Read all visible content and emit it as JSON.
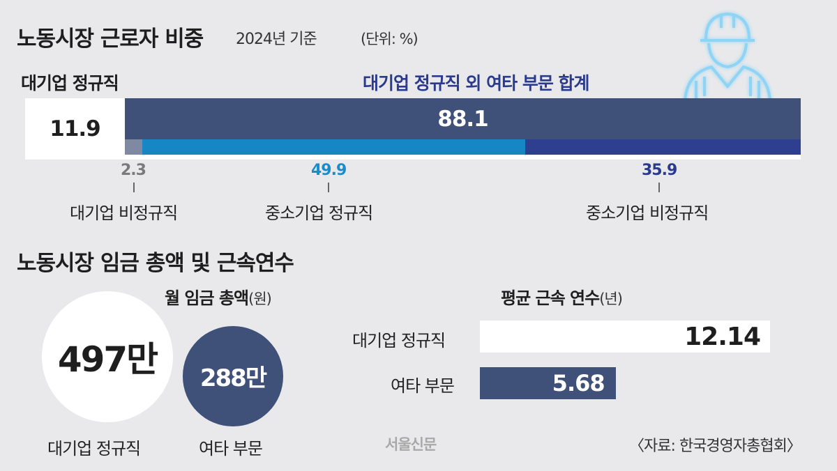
{
  "header": {
    "title": "노동시장 근로자 비중",
    "subtitle": "2024년 기준",
    "unit": "(단위: %)"
  },
  "share_section": {
    "left_label": "대기업 정규직",
    "right_label": "대기업 정규직 외 여타 부문 합계",
    "main_left_value": "11.9",
    "main_right_value": "88.1",
    "segments": [
      {
        "value": "2.3",
        "label": "대기업 비정규직",
        "color": "#7e8aa2"
      },
      {
        "value": "49.9",
        "label": "중소기업 정규직",
        "color": "#1687c4"
      },
      {
        "value": "35.9",
        "label": "중소기업 비정규직",
        "color": "#2e3f8f"
      }
    ]
  },
  "wage_section": {
    "title": "노동시장 임금 총액 및 근속연수",
    "wage_title": "월 임금 총액",
    "wage_unit": "(원)",
    "tenure_title": "평균 근속 연수",
    "tenure_unit": "(년)",
    "wages": [
      {
        "label": "대기업 정규직",
        "value": "497만",
        "amount": 497
      },
      {
        "label": "여타 부문",
        "value": "288만",
        "amount": 288
      }
    ],
    "tenure": [
      {
        "label": "대기업 정규직",
        "value": "12.14",
        "years": 12.14
      },
      {
        "label": "여타 부문",
        "value": "5.68",
        "years": 5.68
      }
    ]
  },
  "footer": {
    "source": "〈자료: 한국경영자총협회〉",
    "watermark": "서울신문"
  },
  "icon": "worker-helmet-icon",
  "colors": {
    "navy": "#3f5179",
    "white": "#ffffff",
    "accent_blue_text": "#2a3a8c",
    "segment_blue_text": "#1a8ccc"
  },
  "chart_data": [
    {
      "type": "bar",
      "title": "노동시장 근로자 비중",
      "subtitle": "2024년 기준",
      "unit": "(단위: %)",
      "categories": [
        "대기업 정규직",
        "대기업 비정규직",
        "중소기업 정규직",
        "중소기업 비정규직"
      ],
      "values": [
        11.9,
        2.3,
        49.9,
        35.9
      ],
      "groups": [
        {
          "name": "대기업 정규직",
          "value": 11.9
        },
        {
          "name": "대기업 정규직 외 여타 부문 합계",
          "value": 88.1
        }
      ],
      "stacked": true
    },
    {
      "type": "bar",
      "title": "월 임금 총액",
      "unit": "(원)",
      "categories": [
        "대기업 정규직",
        "여타 부문"
      ],
      "values": [
        4970000,
        2880000
      ]
    },
    {
      "type": "bar",
      "title": "평균 근속 연수",
      "unit": "(년)",
      "categories": [
        "대기업 정규직",
        "여타 부문"
      ],
      "values": [
        12.14,
        5.68
      ]
    }
  ]
}
